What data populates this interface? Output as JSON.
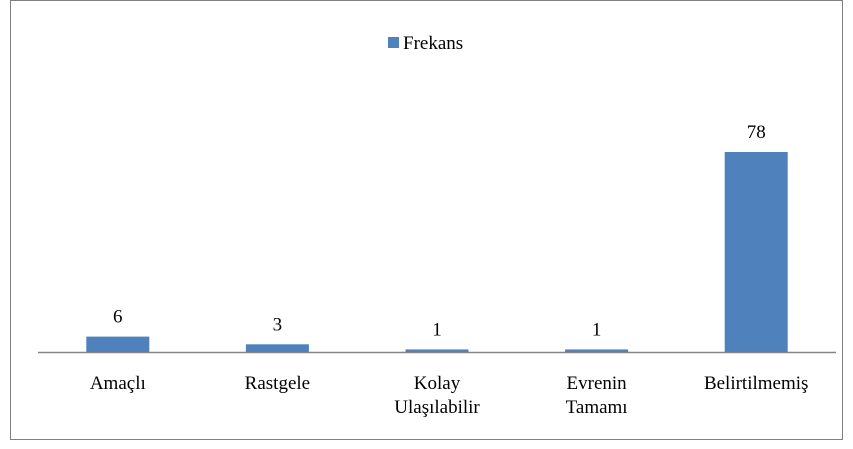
{
  "chart_data": {
    "type": "bar",
    "categories": [
      "Amaçlı",
      "Rastgele",
      "Kolay Ulaşılabilir",
      "Evrenin Tamamı",
      "Belirtilmemiş"
    ],
    "series": [
      {
        "name": "Frekans",
        "color": "#4f81bd",
        "values": [
          6,
          3,
          1,
          1,
          78
        ]
      }
    ],
    "legend": "top"
  }
}
